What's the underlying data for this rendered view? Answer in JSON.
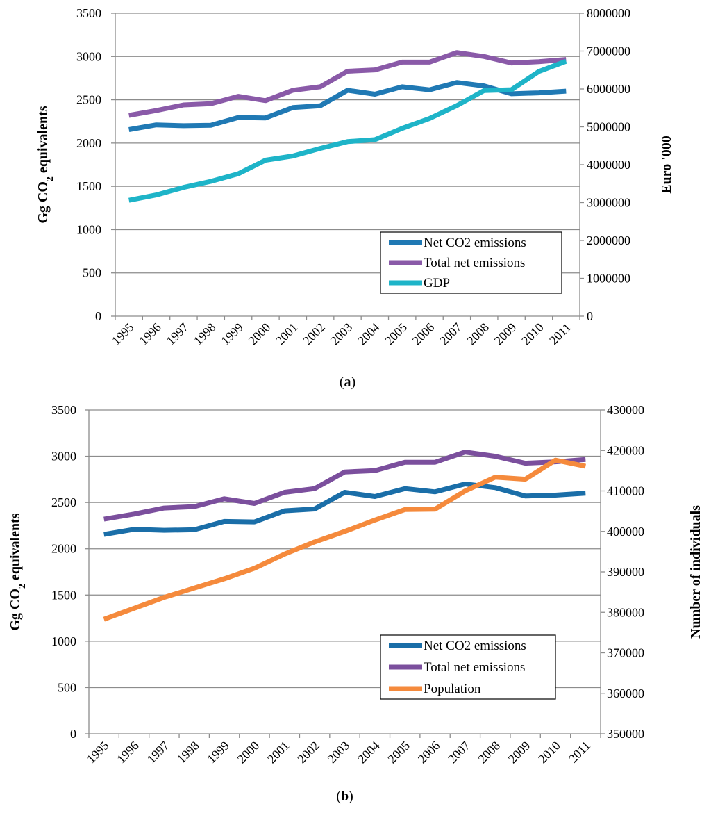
{
  "chart_data": [
    {
      "type": "line",
      "panel_label": "(a)",
      "categories": [
        "1995",
        "1996",
        "1997",
        "1998",
        "1999",
        "2000",
        "2001",
        "2002",
        "2003",
        "2004",
        "2005",
        "2006",
        "2007",
        "2008",
        "2009",
        "2010",
        "2011"
      ],
      "ylabel_left": {
        "main": "Gg CO",
        "sub": "2",
        "rest": " equivalents"
      },
      "ylabel_right": "Euro  '000",
      "ylim_left": [
        0,
        3500
      ],
      "ylim_right": [
        0,
        8000000
      ],
      "yticks_left": [
        0,
        500,
        1000,
        1500,
        2000,
        2500,
        3000,
        3500
      ],
      "yticks_right": [
        0,
        1000000,
        2000000,
        3000000,
        4000000,
        5000000,
        6000000,
        7000000,
        8000000
      ],
      "grid": true,
      "legend_position": "bottom-right",
      "series": [
        {
          "name": "Net CO2 emissions",
          "axis": "left",
          "color": "#2079b4",
          "values": [
            2155,
            2210,
            2200,
            2205,
            2295,
            2290,
            2410,
            2430,
            2610,
            2565,
            2650,
            2615,
            2700,
            2660,
            2570,
            2580,
            2600
          ]
        },
        {
          "name": "Total net emissions",
          "axis": "left",
          "color": "#8a5aa8",
          "values": [
            2320,
            2375,
            2440,
            2455,
            2540,
            2490,
            2610,
            2650,
            2830,
            2845,
            2935,
            2935,
            3045,
            3000,
            2925,
            2940,
            2965
          ]
        },
        {
          "name": "GDP",
          "axis": "right",
          "color": "#1eb4c8",
          "values": [
            3060000,
            3200000,
            3400000,
            3560000,
            3760000,
            4120000,
            4230000,
            4430000,
            4610000,
            4660000,
            4960000,
            5220000,
            5560000,
            5960000,
            5980000,
            6460000,
            6730000
          ]
        }
      ]
    },
    {
      "type": "line",
      "panel_label": "(b)",
      "categories": [
        "1995",
        "1996",
        "1997",
        "1998",
        "1999",
        "2000",
        "2001",
        "2002",
        "2003",
        "2004",
        "2005",
        "2006",
        "2007",
        "2008",
        "2009",
        "2010",
        "2011"
      ],
      "ylabel_left": {
        "main": "Gg CO",
        "sub": "2",
        "rest": " equivalents"
      },
      "ylabel_right": "Number of individuals",
      "ylim_left": [
        0,
        3500
      ],
      "ylim_right": [
        350000,
        430000
      ],
      "yticks_left": [
        0,
        500,
        1000,
        1500,
        2000,
        2500,
        3000,
        3500
      ],
      "yticks_right": [
        350000,
        360000,
        370000,
        380000,
        390000,
        400000,
        410000,
        420000,
        430000
      ],
      "grid": true,
      "legend_position": "bottom-right",
      "series": [
        {
          "name": "Net CO2 emissions",
          "axis": "left",
          "color": "#1a6ea8",
          "values": [
            2155,
            2210,
            2200,
            2205,
            2295,
            2290,
            2410,
            2430,
            2610,
            2565,
            2650,
            2615,
            2700,
            2660,
            2570,
            2580,
            2600
          ]
        },
        {
          "name": "Total net emissions",
          "axis": "left",
          "color": "#7b4f9d",
          "values": [
            2320,
            2375,
            2440,
            2455,
            2540,
            2490,
            2610,
            2650,
            2830,
            2845,
            2935,
            2935,
            3045,
            3000,
            2925,
            2940,
            2965
          ]
        },
        {
          "name": "Population",
          "axis": "right",
          "color": "#f58a3c",
          "values": [
            378300,
            381000,
            383700,
            386000,
            388300,
            390900,
            394400,
            397400,
            400000,
            402800,
            405400,
            405500,
            410000,
            413400,
            412900,
            417600,
            416100
          ]
        }
      ]
    }
  ]
}
